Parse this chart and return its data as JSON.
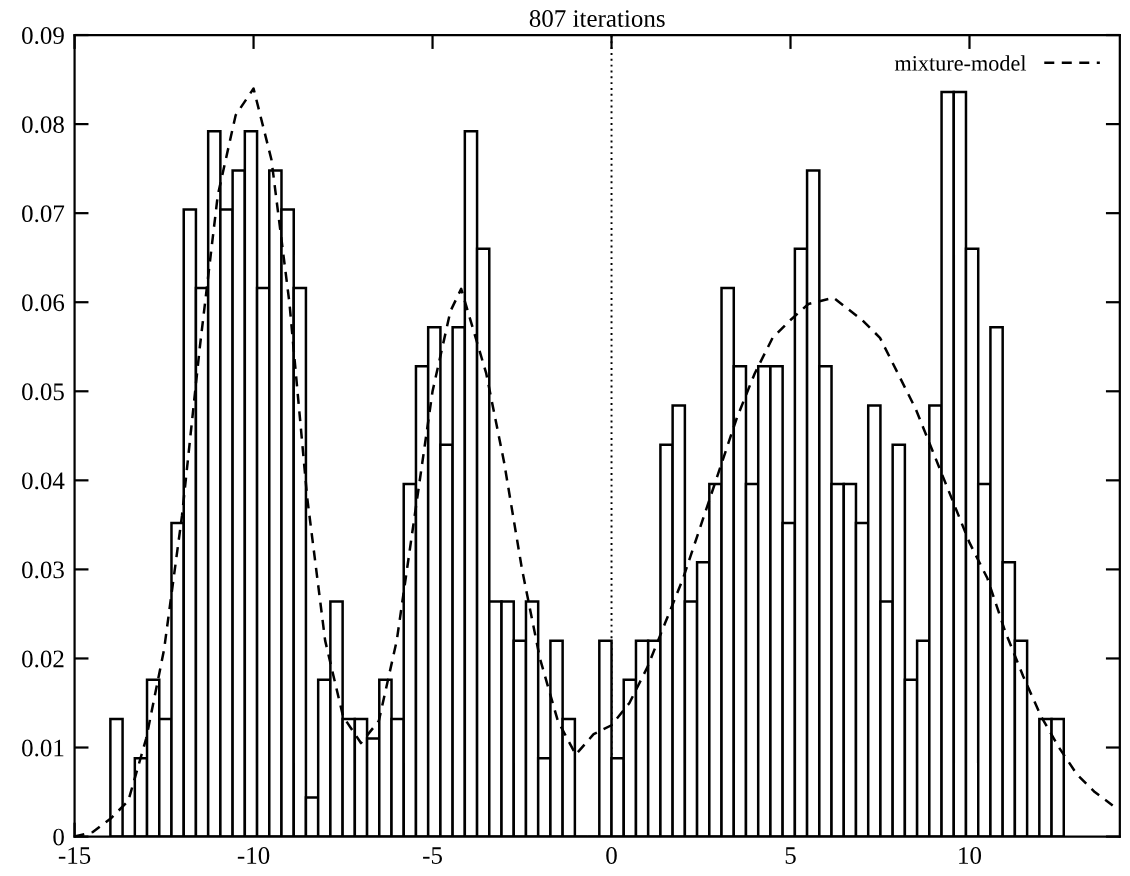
{
  "chart_data": {
    "type": "histogram",
    "title": "807 iterations",
    "xlim": [
      -15,
      14.2
    ],
    "xticks": [
      -15,
      -10,
      -5,
      0,
      5,
      10
    ],
    "ylim": [
      0,
      0.09
    ],
    "yticks": [
      0,
      0.01,
      0.02,
      0.03,
      0.04,
      0.05,
      0.06,
      0.07,
      0.08,
      0.09
    ],
    "grid": false,
    "legend": "top right",
    "ref_lines": [
      {
        "axis": "x",
        "value": 0,
        "line_style": "dotted",
        "color": "#000000"
      }
    ],
    "series": [
      {
        "color": "#000000",
        "bins": [
          -14,
          -13.659,
          -13.317,
          -12.976,
          -12.634,
          -12.293,
          -11.951,
          -11.61,
          -11.268,
          -10.927,
          -10.585,
          -10.244,
          -9.902,
          -9.561,
          -9.22,
          -8.878,
          -8.537,
          -8.195,
          -7.854,
          -7.512,
          -7.171,
          -6.829,
          -6.488,
          -6.146,
          -5.805,
          -5.463,
          -5.122,
          -4.78,
          -4.439,
          -4.098,
          -3.756,
          -3.415,
          -3.073,
          -2.732,
          -2.39,
          -2.049,
          -1.707,
          -1.366,
          -1.024,
          -0.683,
          -0.341,
          0,
          0.341,
          0.683,
          1.024,
          1.366,
          1.707,
          2.049,
          2.39,
          2.732,
          3.073,
          3.415,
          3.756,
          4.098,
          4.439,
          4.78,
          5.122,
          5.463,
          5.805,
          6.146,
          6.488,
          6.829,
          7.171,
          7.512,
          7.854,
          8.195,
          8.537,
          8.878,
          9.22,
          9.561,
          9.902,
          10.244,
          10.585,
          10.927,
          11.268,
          11.61,
          11.951,
          12.293,
          12.634
        ],
        "values": [
          0.0132,
          0,
          0.0088,
          0.0176,
          0.0132,
          0.0352,
          0.0704,
          0.0616,
          0.0792,
          0.0704,
          0.0748,
          0.0792,
          0.0616,
          0.0748,
          0.0704,
          0.0616,
          0.0044,
          0.0176,
          0.0264,
          0.0132,
          0.0132,
          0.011,
          0.0176,
          0.0132,
          0.0396,
          0.0528,
          0.0572,
          0.044,
          0.0572,
          0.0792,
          0.066,
          0.0264,
          0.0264,
          0.022,
          0.0264,
          0.0088,
          0.022,
          0.0132,
          0,
          0,
          0.022,
          0.0088,
          0.0176,
          0.022,
          0.022,
          0.044,
          0.0484,
          0.0264,
          0.0308,
          0.0396,
          0.0616,
          0.0528,
          0.0396,
          0.0528,
          0.0528,
          0.0352,
          0.066,
          0.0748,
          0.0528,
          0.0396,
          0.0396,
          0.0352,
          0.0484,
          0.0264,
          0.044,
          0.0176,
          0.022,
          0.0484,
          0.0836,
          0.0836,
          0.066,
          0.0396,
          0.0572,
          0.0308,
          0.022,
          0,
          0.0132,
          0.0132
        ]
      },
      {
        "type": "line",
        "name": "mixture-model",
        "color": "#000000",
        "line_style": "dashed",
        "marker": "none",
        "x": [
          -15,
          -14.5,
          -14,
          -13.5,
          -13,
          -12.5,
          -12,
          -11.5,
          -11,
          -10.5,
          -10,
          -9.5,
          -9,
          -8.5,
          -8,
          -7.5,
          -7,
          -6.5,
          -6,
          -5.5,
          -5,
          -4.5,
          -4.2,
          -3.5,
          -3,
          -2.5,
          -2,
          -1.5,
          -1,
          -0.5,
          0,
          0.5,
          1,
          1.5,
          2,
          2.5,
          3,
          3.5,
          4,
          4.5,
          5,
          5.5,
          6.2,
          7,
          7.5,
          8,
          8.5,
          9,
          9.5,
          10,
          10.5,
          11,
          11.5,
          12,
          12.5,
          13,
          13.5,
          14
        ],
        "values": [
          0,
          0.0005,
          0.002,
          0.004,
          0.011,
          0.021,
          0.036,
          0.055,
          0.072,
          0.081,
          0.084,
          0.076,
          0.06,
          0.038,
          0.022,
          0.0135,
          0.0105,
          0.013,
          0.022,
          0.036,
          0.05,
          0.059,
          0.0615,
          0.052,
          0.042,
          0.03,
          0.02,
          0.013,
          0.0092,
          0.0115,
          0.0125,
          0.015,
          0.019,
          0.024,
          0.029,
          0.035,
          0.041,
          0.047,
          0.052,
          0.056,
          0.058,
          0.0598,
          0.0605,
          0.058,
          0.056,
          0.052,
          0.048,
          0.043,
          0.038,
          0.033,
          0.029,
          0.023,
          0.018,
          0.0135,
          0.01,
          0.007,
          0.005,
          0.0035
        ]
      }
    ]
  }
}
